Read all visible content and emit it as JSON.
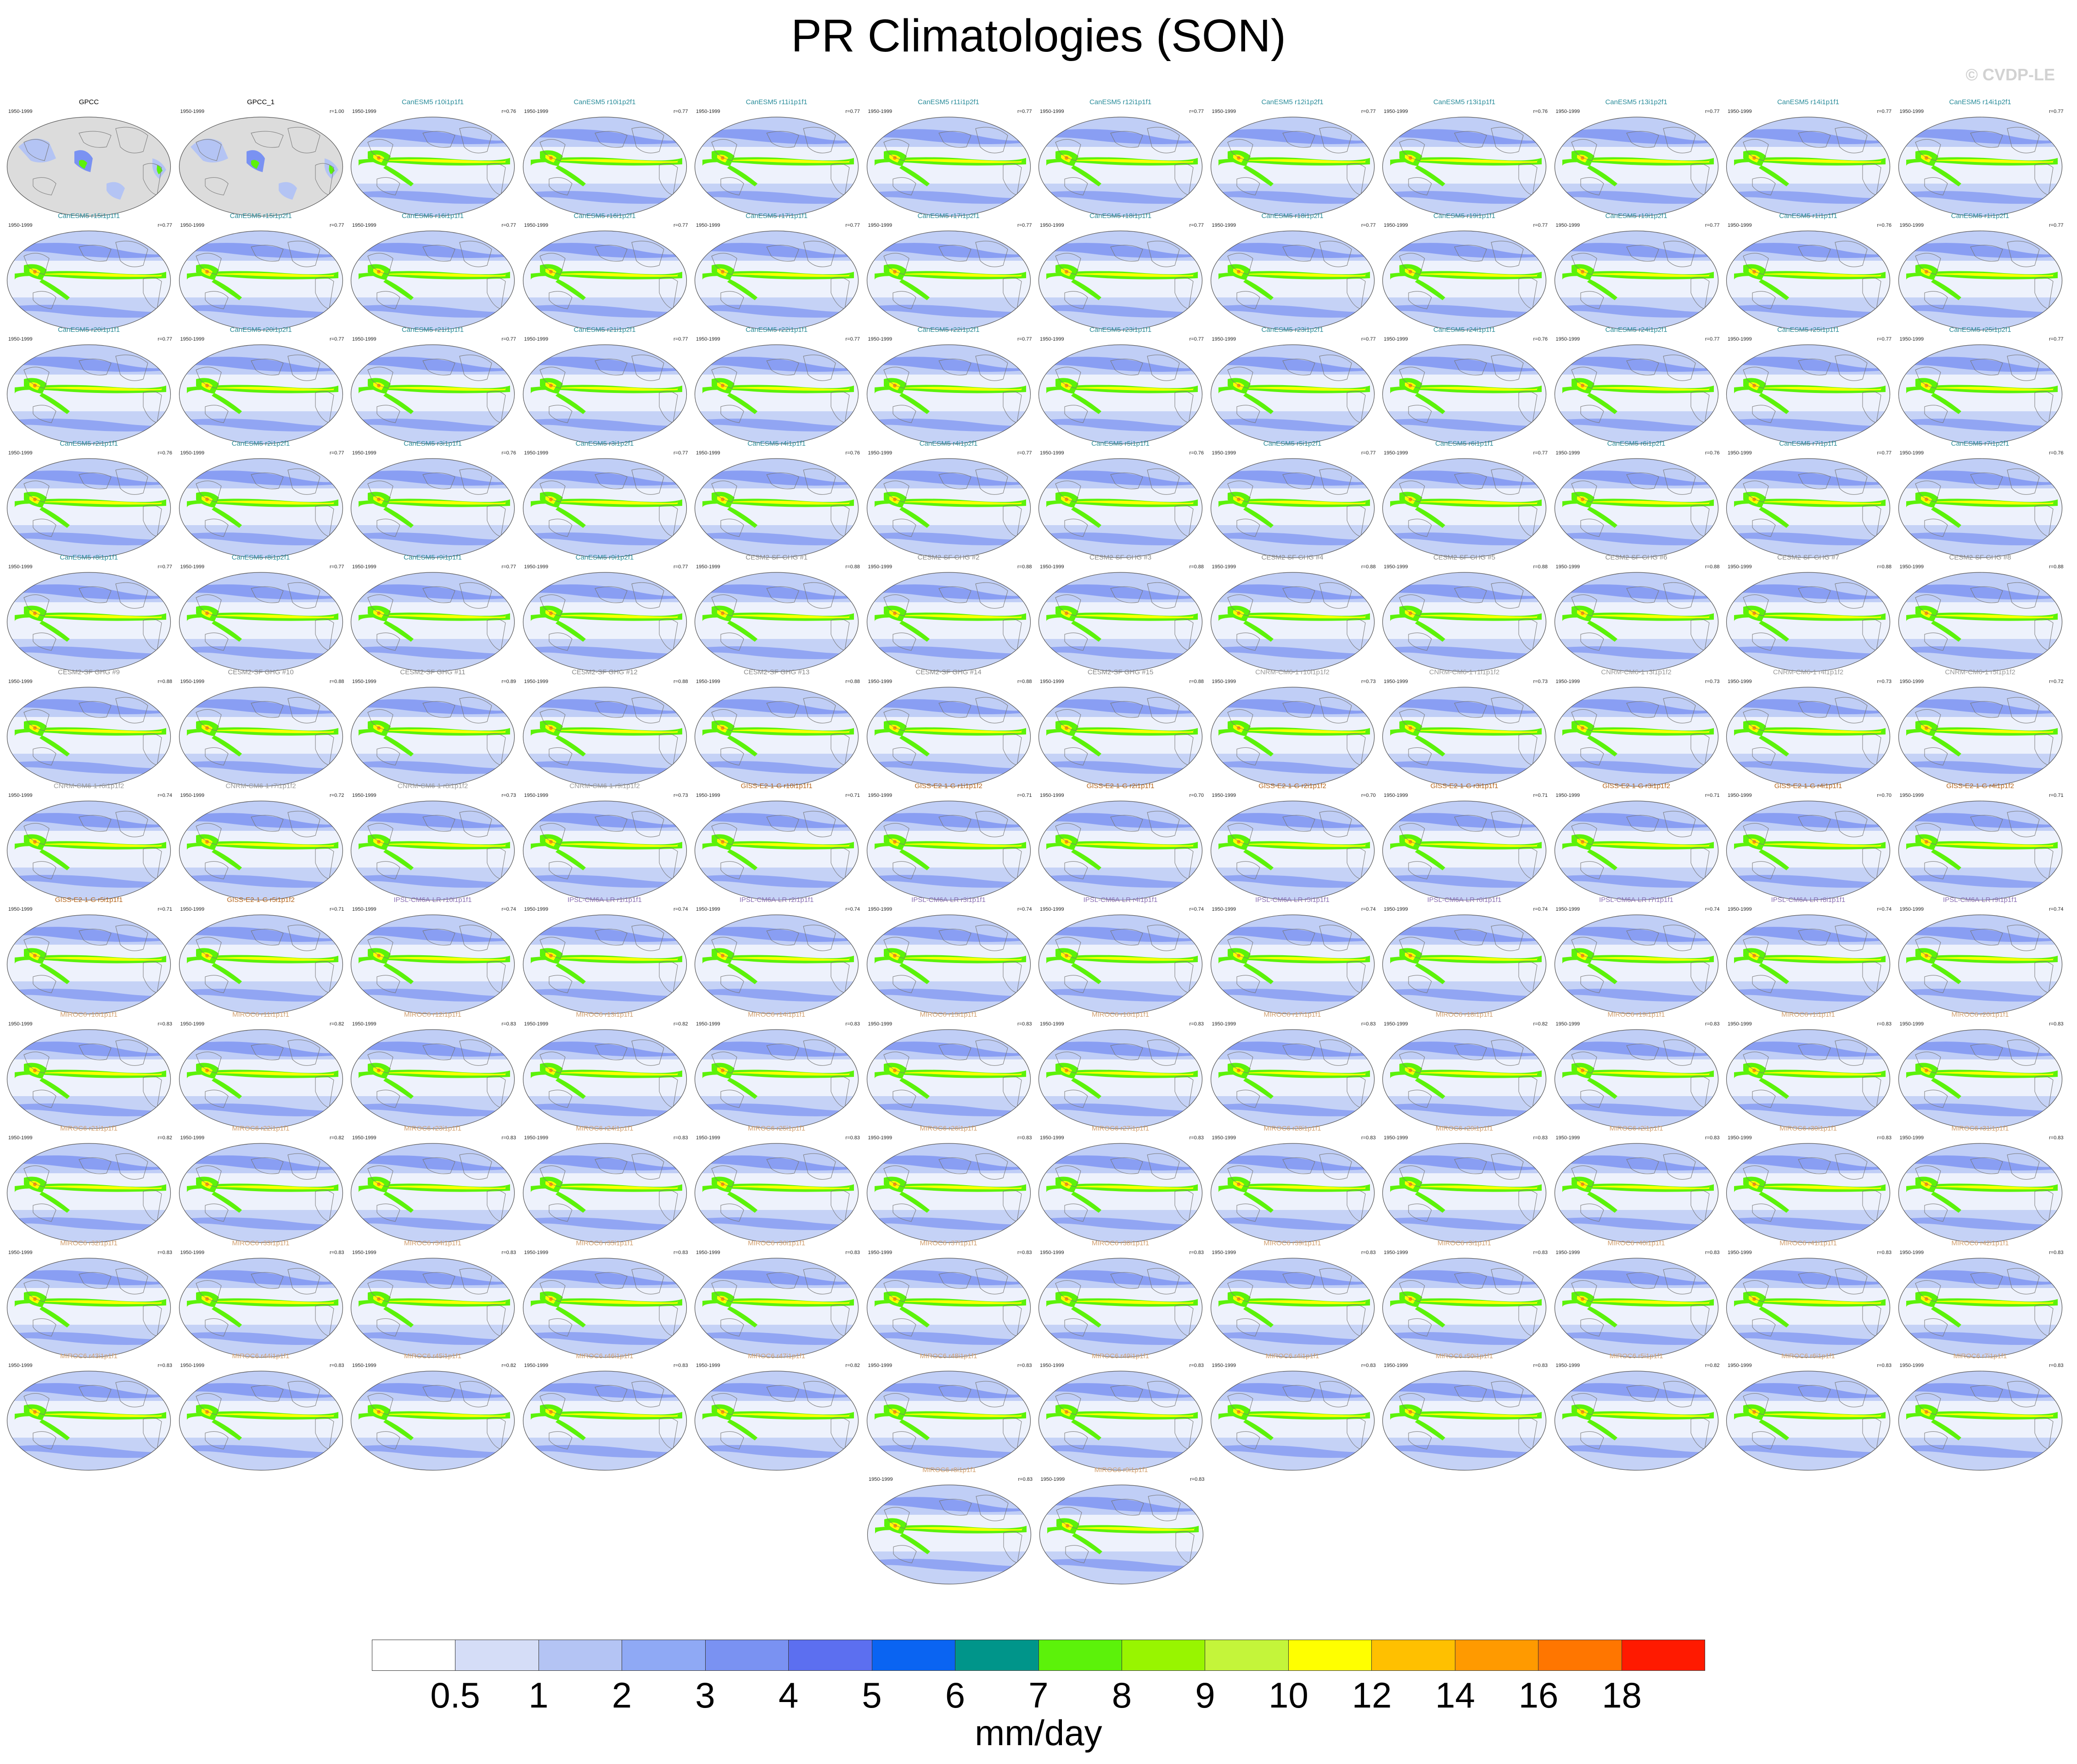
{
  "title": "PR Climatologies (SON)",
  "watermark": "© CVDP-LE",
  "period": "1950-1999",
  "columns": 12,
  "panels": [
    {
      "name": "GPCC",
      "r": "",
      "color": "#000000",
      "obs": true
    },
    {
      "name": "GPCC_1",
      "r": "r=1.00",
      "color": "#000000",
      "obs": true
    },
    {
      "name": "CanESM5 r10i1p1f1",
      "r": "r=0.76",
      "color": "#2a8c9a"
    },
    {
      "name": "CanESM5 r10i1p2f1",
      "r": "r=0.77",
      "color": "#2a8c9a"
    },
    {
      "name": "CanESM5 r11i1p1f1",
      "r": "r=0.77",
      "color": "#2a8c9a"
    },
    {
      "name": "CanESM5 r11i1p2f1",
      "r": "r=0.77",
      "color": "#2a8c9a"
    },
    {
      "name": "CanESM5 r12i1p1f1",
      "r": "r=0.77",
      "color": "#2a8c9a"
    },
    {
      "name": "CanESM5 r12i1p2f1",
      "r": "r=0.77",
      "color": "#2a8c9a"
    },
    {
      "name": "CanESM5 r13i1p1f1",
      "r": "r=0.76",
      "color": "#2a8c9a"
    },
    {
      "name": "CanESM5 r13i1p2f1",
      "r": "r=0.77",
      "color": "#2a8c9a"
    },
    {
      "name": "CanESM5 r14i1p1f1",
      "r": "r=0.77",
      "color": "#2a8c9a"
    },
    {
      "name": "CanESM5 r14i1p2f1",
      "r": "r=0.77",
      "color": "#2a8c9a"
    },
    {
      "name": "CanESM5 r15i1p1f1",
      "r": "r=0.77",
      "color": "#2a8c9a"
    },
    {
      "name": "CanESM5 r15i1p2f1",
      "r": "r=0.77",
      "color": "#2a8c9a"
    },
    {
      "name": "CanESM5 r16i1p1f1",
      "r": "r=0.77",
      "color": "#2a8c9a"
    },
    {
      "name": "CanESM5 r16i1p2f1",
      "r": "r=0.77",
      "color": "#2a8c9a"
    },
    {
      "name": "CanESM5 r17i1p1f1",
      "r": "r=0.77",
      "color": "#2a8c9a"
    },
    {
      "name": "CanESM5 r17i1p2f1",
      "r": "r=0.77",
      "color": "#2a8c9a"
    },
    {
      "name": "CanESM5 r18i1p1f1",
      "r": "r=0.77",
      "color": "#2a8c9a"
    },
    {
      "name": "CanESM5 r18i1p2f1",
      "r": "r=0.77",
      "color": "#2a8c9a"
    },
    {
      "name": "CanESM5 r19i1p1f1",
      "r": "r=0.77",
      "color": "#2a8c9a"
    },
    {
      "name": "CanESM5 r19i1p2f1",
      "r": "r=0.77",
      "color": "#2a8c9a"
    },
    {
      "name": "CanESM5 r1i1p1f1",
      "r": "r=0.76",
      "color": "#2a8c9a"
    },
    {
      "name": "CanESM5 r1i1p2f1",
      "r": "r=0.77",
      "color": "#2a8c9a"
    },
    {
      "name": "CanESM5 r20i1p1f1",
      "r": "r=0.77",
      "color": "#2a8c9a"
    },
    {
      "name": "CanESM5 r20i1p2f1",
      "r": "r=0.77",
      "color": "#2a8c9a"
    },
    {
      "name": "CanESM5 r21i1p1f1",
      "r": "r=0.77",
      "color": "#2a8c9a"
    },
    {
      "name": "CanESM5 r21i1p2f1",
      "r": "r=0.77",
      "color": "#2a8c9a"
    },
    {
      "name": "CanESM5 r22i1p1f1",
      "r": "r=0.77",
      "color": "#2a8c9a"
    },
    {
      "name": "CanESM5 r22i1p2f1",
      "r": "r=0.77",
      "color": "#2a8c9a"
    },
    {
      "name": "CanESM5 r23i1p1f1",
      "r": "r=0.77",
      "color": "#2a8c9a"
    },
    {
      "name": "CanESM5 r23i1p2f1",
      "r": "r=0.77",
      "color": "#2a8c9a"
    },
    {
      "name": "CanESM5 r24i1p1f1",
      "r": "r=0.76",
      "color": "#2a8c9a"
    },
    {
      "name": "CanESM5 r24i1p2f1",
      "r": "r=0.77",
      "color": "#2a8c9a"
    },
    {
      "name": "CanESM5 r25i1p1f1",
      "r": "r=0.77",
      "color": "#2a8c9a"
    },
    {
      "name": "CanESM5 r25i1p2f1",
      "r": "r=0.77",
      "color": "#2a8c9a"
    },
    {
      "name": "CanESM5 r2i1p1f1",
      "r": "r=0.76",
      "color": "#2a8c9a"
    },
    {
      "name": "CanESM5 r2i1p2f1",
      "r": "r=0.77",
      "color": "#2a8c9a"
    },
    {
      "name": "CanESM5 r3i1p1f1",
      "r": "r=0.76",
      "color": "#2a8c9a"
    },
    {
      "name": "CanESM5 r3i1p2f1",
      "r": "r=0.77",
      "color": "#2a8c9a"
    },
    {
      "name": "CanESM5 r4i1p1f1",
      "r": "r=0.76",
      "color": "#2a8c9a"
    },
    {
      "name": "CanESM5 r4i1p2f1",
      "r": "r=0.77",
      "color": "#2a8c9a"
    },
    {
      "name": "CanESM5 r5i1p1f1",
      "r": "r=0.76",
      "color": "#2a8c9a"
    },
    {
      "name": "CanESM5 r5i1p2f1",
      "r": "r=0.77",
      "color": "#2a8c9a"
    },
    {
      "name": "CanESM5 r6i1p1f1",
      "r": "r=0.77",
      "color": "#2a8c9a"
    },
    {
      "name": "CanESM5 r6i1p2f1",
      "r": "r=0.76",
      "color": "#2a8c9a"
    },
    {
      "name": "CanESM5 r7i1p1f1",
      "r": "r=0.77",
      "color": "#2a8c9a"
    },
    {
      "name": "CanESM5 r7i1p2f1",
      "r": "r=0.76",
      "color": "#2a8c9a"
    },
    {
      "name": "CanESM5 r8i1p1f1",
      "r": "r=0.77",
      "color": "#2a8c9a"
    },
    {
      "name": "CanESM5 r8i1p2f1",
      "r": "r=0.77",
      "color": "#2a8c9a"
    },
    {
      "name": "CanESM5 r9i1p1f1",
      "r": "r=0.77",
      "color": "#2a8c9a"
    },
    {
      "name": "CanESM5 r9i1p2f1",
      "r": "r=0.77",
      "color": "#2a8c9a"
    },
    {
      "name": "CESM2-SF GHG #1",
      "r": "r=0.88",
      "color": "#8a8a8a"
    },
    {
      "name": "CESM2-SF GHG #2",
      "r": "r=0.88",
      "color": "#8a8a8a"
    },
    {
      "name": "CESM2-SF GHG #3",
      "r": "r=0.88",
      "color": "#8a8a8a"
    },
    {
      "name": "CESM2-SF GHG #4",
      "r": "r=0.88",
      "color": "#8a8a8a"
    },
    {
      "name": "CESM2-SF GHG #5",
      "r": "r=0.88",
      "color": "#8a8a8a"
    },
    {
      "name": "CESM2-SF GHG #6",
      "r": "r=0.88",
      "color": "#8a8a8a"
    },
    {
      "name": "CESM2-SF GHG #7",
      "r": "r=0.88",
      "color": "#8a8a8a"
    },
    {
      "name": "CESM2-SF GHG #8",
      "r": "r=0.88",
      "color": "#8a8a8a"
    },
    {
      "name": "CESM2-SF GHG #9",
      "r": "r=0.88",
      "color": "#8a8a8a"
    },
    {
      "name": "CESM2-SF GHG #10",
      "r": "r=0.88",
      "color": "#8a8a8a"
    },
    {
      "name": "CESM2-SF GHG #11",
      "r": "r=0.89",
      "color": "#8a8a8a"
    },
    {
      "name": "CESM2-SF GHG #12",
      "r": "r=0.88",
      "color": "#8a8a8a"
    },
    {
      "name": "CESM2-SF GHG #13",
      "r": "r=0.88",
      "color": "#8a8a8a"
    },
    {
      "name": "CESM2-SF GHG #14",
      "r": "r=0.88",
      "color": "#8a8a8a"
    },
    {
      "name": "CESM2-SF GHG #15",
      "r": "r=0.88",
      "color": "#8a8a8a"
    },
    {
      "name": "CNRM-CM6-1 r10i1p1f2",
      "r": "r=0.73",
      "color": "#9a9a9a"
    },
    {
      "name": "CNRM-CM6-1 r1i1p1f2",
      "r": "r=0.73",
      "color": "#9a9a9a"
    },
    {
      "name": "CNRM-CM6-1 r3i1p1f2",
      "r": "r=0.73",
      "color": "#9a9a9a"
    },
    {
      "name": "CNRM-CM6-1 r4i1p1f2",
      "r": "r=0.73",
      "color": "#9a9a9a"
    },
    {
      "name": "CNRM-CM6-1 r5i1p1f2",
      "r": "r=0.72",
      "color": "#9a9a9a"
    },
    {
      "name": "CNRM-CM6-1 r6i1p1f2",
      "r": "r=0.74",
      "color": "#9a9a9a"
    },
    {
      "name": "CNRM-CM6-1 r7i1p1f2",
      "r": "r=0.72",
      "color": "#9a9a9a"
    },
    {
      "name": "CNRM-CM6-1 r8i1p1f2",
      "r": "r=0.73",
      "color": "#9a9a9a"
    },
    {
      "name": "CNRM-CM6-1 r9i1p1f2",
      "r": "r=0.73",
      "color": "#9a9a9a"
    },
    {
      "name": "GISS-E2-1-G r10i1p1f1",
      "r": "r=0.71",
      "color": "#b5651d"
    },
    {
      "name": "GISS-E2-1-G r1i1p1f2",
      "r": "r=0.71",
      "color": "#b5651d"
    },
    {
      "name": "GISS-E2-1-G r2i1p1f1",
      "r": "r=0.70",
      "color": "#b5651d"
    },
    {
      "name": "GISS-E2-1-G r2i1p1f2",
      "r": "r=0.70",
      "color": "#b5651d"
    },
    {
      "name": "GISS-E2-1-G r3i1p1f1",
      "r": "r=0.71",
      "color": "#b5651d"
    },
    {
      "name": "GISS-E2-1-G r3i1p1f2",
      "r": "r=0.71",
      "color": "#b5651d"
    },
    {
      "name": "GISS-E2-1-G r4i1p1f1",
      "r": "r=0.70",
      "color": "#b5651d"
    },
    {
      "name": "GISS-E2-1-G r4i1p1f2",
      "r": "r=0.71",
      "color": "#b5651d"
    },
    {
      "name": "GISS-E2-1-G r5i1p1f1",
      "r": "r=0.71",
      "color": "#b5651d"
    },
    {
      "name": "GISS-E2-1-G r5i1p1f2",
      "r": "r=0.71",
      "color": "#b5651d"
    },
    {
      "name": "IPSL-CM6A-LR r10i1p1f1",
      "r": "r=0.74",
      "color": "#8a6fb5"
    },
    {
      "name": "IPSL-CM6A-LR r1i1p1f1",
      "r": "r=0.74",
      "color": "#8a6fb5"
    },
    {
      "name": "IPSL-CM6A-LR r2i1p1f1",
      "r": "r=0.74",
      "color": "#8a6fb5"
    },
    {
      "name": "IPSL-CM6A-LR r3i1p1f1",
      "r": "r=0.74",
      "color": "#8a6fb5"
    },
    {
      "name": "IPSL-CM6A-LR r4i1p1f1",
      "r": "r=0.74",
      "color": "#8a6fb5"
    },
    {
      "name": "IPSL-CM6A-LR r5i1p1f1",
      "r": "r=0.74",
      "color": "#8a6fb5"
    },
    {
      "name": "IPSL-CM6A-LR r6i1p1f1",
      "r": "r=0.74",
      "color": "#8a6fb5"
    },
    {
      "name": "IPSL-CM6A-LR r7i1p1f1",
      "r": "r=0.74",
      "color": "#8a6fb5"
    },
    {
      "name": "IPSL-CM6A-LR r8i1p1f1",
      "r": "r=0.74",
      "color": "#8a6fb5"
    },
    {
      "name": "IPSL-CM6A-LR r9i1p1f1",
      "r": "r=0.74",
      "color": "#8a6fb5"
    },
    {
      "name": "MIROC6 r10i1p1f1",
      "r": "r=0.83",
      "color": "#d2a070"
    },
    {
      "name": "MIROC6 r11i1p1f1",
      "r": "r=0.82",
      "color": "#d2a070"
    },
    {
      "name": "MIROC6 r12i1p1f1",
      "r": "r=0.83",
      "color": "#d2a070"
    },
    {
      "name": "MIROC6 r13i1p1f1",
      "r": "r=0.82",
      "color": "#d2a070"
    },
    {
      "name": "MIROC6 r14i1p1f1",
      "r": "r=0.83",
      "color": "#d2a070"
    },
    {
      "name": "MIROC6 r15i1p1f1",
      "r": "r=0.83",
      "color": "#d2a070"
    },
    {
      "name": "MIROC6 r16i1p1f1",
      "r": "r=0.83",
      "color": "#d2a070"
    },
    {
      "name": "MIROC6 r17i1p1f1",
      "r": "r=0.83",
      "color": "#d2a070"
    },
    {
      "name": "MIROC6 r18i1p1f1",
      "r": "r=0.82",
      "color": "#d2a070"
    },
    {
      "name": "MIROC6 r19i1p1f1",
      "r": "r=0.83",
      "color": "#d2a070"
    },
    {
      "name": "MIROC6 r1i1p1f1",
      "r": "r=0.83",
      "color": "#d2a070"
    },
    {
      "name": "MIROC6 r20i1p1f1",
      "r": "r=0.83",
      "color": "#d2a070"
    },
    {
      "name": "MIROC6 r21i1p1f1",
      "r": "r=0.82",
      "color": "#d2a070"
    },
    {
      "name": "MIROC6 r22i1p1f1",
      "r": "r=0.82",
      "color": "#d2a070"
    },
    {
      "name": "MIROC6 r23i1p1f1",
      "r": "r=0.83",
      "color": "#d2a070"
    },
    {
      "name": "MIROC6 r24i1p1f1",
      "r": "r=0.83",
      "color": "#d2a070"
    },
    {
      "name": "MIROC6 r25i1p1f1",
      "r": "r=0.83",
      "color": "#d2a070"
    },
    {
      "name": "MIROC6 r26i1p1f1",
      "r": "r=0.83",
      "color": "#d2a070"
    },
    {
      "name": "MIROC6 r27i1p1f1",
      "r": "r=0.83",
      "color": "#d2a070"
    },
    {
      "name": "MIROC6 r28i1p1f1",
      "r": "r=0.83",
      "color": "#d2a070"
    },
    {
      "name": "MIROC6 r29i1p1f1",
      "r": "r=0.83",
      "color": "#d2a070"
    },
    {
      "name": "MIROC6 r2i1p1f1",
      "r": "r=0.83",
      "color": "#d2a070"
    },
    {
      "name": "MIROC6 r30i1p1f1",
      "r": "r=0.83",
      "color": "#d2a070"
    },
    {
      "name": "MIROC6 r31i1p1f1",
      "r": "r=0.83",
      "color": "#d2a070"
    },
    {
      "name": "MIROC6 r32i1p1f1",
      "r": "r=0.83",
      "color": "#d2a070"
    },
    {
      "name": "MIROC6 r33i1p1f1",
      "r": "r=0.83",
      "color": "#d2a070"
    },
    {
      "name": "MIROC6 r34i1p1f1",
      "r": "r=0.83",
      "color": "#d2a070"
    },
    {
      "name": "MIROC6 r35i1p1f1",
      "r": "r=0.83",
      "color": "#d2a070"
    },
    {
      "name": "MIROC6 r36i1p1f1",
      "r": "r=0.83",
      "color": "#d2a070"
    },
    {
      "name": "MIROC6 r37i1p1f1",
      "r": "r=0.83",
      "color": "#d2a070"
    },
    {
      "name": "MIROC6 r38i1p1f1",
      "r": "r=0.83",
      "color": "#d2a070"
    },
    {
      "name": "MIROC6 r39i1p1f1",
      "r": "r=0.83",
      "color": "#d2a070"
    },
    {
      "name": "MIROC6 r3i1p1f1",
      "r": "r=0.83",
      "color": "#d2a070"
    },
    {
      "name": "MIROC6 r40i1p1f1",
      "r": "r=0.83",
      "color": "#d2a070"
    },
    {
      "name": "MIROC6 r41i1p1f1",
      "r": "r=0.83",
      "color": "#d2a070"
    },
    {
      "name": "MIROC6 r42i1p1f1",
      "r": "r=0.83",
      "color": "#d2a070"
    },
    {
      "name": "MIROC6 r43i1p1f1",
      "r": "r=0.83",
      "color": "#d2a070"
    },
    {
      "name": "MIROC6 r44i1p1f1",
      "r": "r=0.83",
      "color": "#d2a070"
    },
    {
      "name": "MIROC6 r45i1p1f1",
      "r": "r=0.82",
      "color": "#d2a070"
    },
    {
      "name": "MIROC6 r46i1p1f1",
      "r": "r=0.83",
      "color": "#d2a070"
    },
    {
      "name": "MIROC6 r47i1p1f1",
      "r": "r=0.82",
      "color": "#d2a070"
    },
    {
      "name": "MIROC6 r48i1p1f1",
      "r": "r=0.83",
      "color": "#d2a070"
    },
    {
      "name": "MIROC6 r49i1p1f1",
      "r": "r=0.83",
      "color": "#d2a070"
    },
    {
      "name": "MIROC6 r4i1p1f1",
      "r": "r=0.83",
      "color": "#d2a070"
    },
    {
      "name": "MIROC6 r50i1p1f1",
      "r": "r=0.83",
      "color": "#d2a070"
    },
    {
      "name": "MIROC6 r5i1p1f1",
      "r": "r=0.82",
      "color": "#d2a070"
    },
    {
      "name": "MIROC6 r6i1p1f1",
      "r": "r=0.83",
      "color": "#d2a070"
    },
    {
      "name": "MIROC6 r7i1p1f1",
      "r": "r=0.83",
      "color": "#d2a070"
    },
    {
      "name": "MIROC6 r8i1p1f1",
      "r": "r=0.83",
      "color": "#d2a070"
    },
    {
      "name": "MIROC6 r9i1p1f1",
      "r": "r=0.83",
      "color": "#d2a070"
    }
  ],
  "colorbar": {
    "colors": [
      "#ffffff",
      "#d5ddf7",
      "#b4c4f4",
      "#8fa9f5",
      "#7a92f2",
      "#5c6ff0",
      "#0a64f2",
      "#00958a",
      "#5cf20a",
      "#98f500",
      "#c4f53a",
      "#ffff00",
      "#ffc000",
      "#ff9a00",
      "#ff7600",
      "#ff1a00"
    ],
    "labels": [
      "0.5",
      "1",
      "2",
      "3",
      "4",
      "5",
      "6",
      "7",
      "8",
      "9",
      "10",
      "12",
      "14",
      "16",
      "18"
    ],
    "units": "mm/day"
  },
  "map_colors": {
    "ocean_light": "#eef2fc",
    "ocean_mid": "#b4c4f4",
    "ocean_blue": "#7a92f2",
    "itcz_green": "#5cf20a",
    "itcz_yellow": "#ffff00",
    "obs_land_gray": "#dcdcdc",
    "coast": "#777777"
  }
}
